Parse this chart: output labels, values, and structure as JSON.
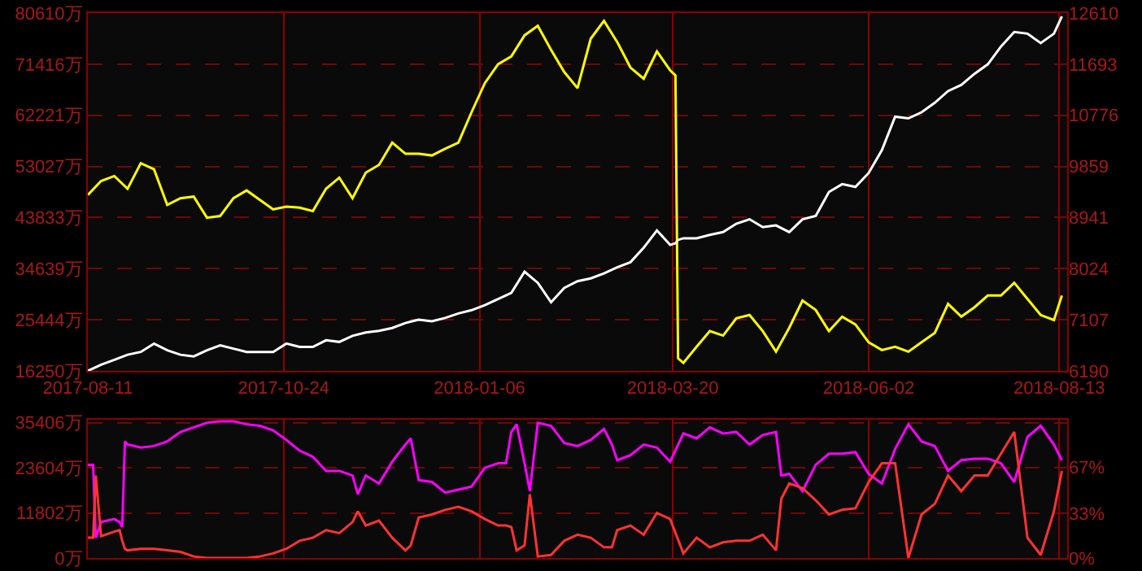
{
  "chart_data": [
    {
      "type": "line",
      "grid": true,
      "x": [
        "2017-08-11",
        "2017-08-16",
        "2017-08-21",
        "2017-08-26",
        "2017-08-31",
        "2017-09-05",
        "2017-09-10",
        "2017-09-15",
        "2017-09-20",
        "2017-09-25",
        "2017-09-30",
        "2017-10-05",
        "2017-10-10",
        "2017-10-15",
        "2017-10-20",
        "2017-10-25",
        "2017-10-30",
        "2017-11-04",
        "2017-11-09",
        "2017-11-14",
        "2017-11-19",
        "2017-11-24",
        "2017-11-29",
        "2017-12-04",
        "2017-12-09",
        "2017-12-14",
        "2017-12-19",
        "2017-12-24",
        "2017-12-29",
        "2018-01-03",
        "2018-01-08",
        "2018-01-13",
        "2018-01-18",
        "2018-01-23",
        "2018-01-28",
        "2018-02-02",
        "2018-02-07",
        "2018-02-12",
        "2018-02-17",
        "2018-02-22",
        "2018-02-27",
        "2018-03-04",
        "2018-03-09",
        "2018-03-14",
        "2018-03-19",
        "2018-03-21",
        "2018-03-22",
        "2018-03-24",
        "2018-03-29",
        "2018-04-03",
        "2018-04-08",
        "2018-04-13",
        "2018-04-18",
        "2018-04-23",
        "2018-04-28",
        "2018-05-03",
        "2018-05-08",
        "2018-05-13",
        "2018-05-18",
        "2018-05-23",
        "2018-05-28",
        "2018-06-02",
        "2018-06-07",
        "2018-06-12",
        "2018-06-17",
        "2018-06-22",
        "2018-06-27",
        "2018-07-02",
        "2018-07-07",
        "2018-07-12",
        "2018-07-17",
        "2018-07-22",
        "2018-07-27",
        "2018-08-01",
        "2018-08-06",
        "2018-08-11",
        "2018-08-14"
      ],
      "series": [
        {
          "color": "#ffff00",
          "values": [
            47900,
            50400,
            51300,
            49000,
            53600,
            52500,
            46100,
            47300,
            47600,
            43800,
            44100,
            47300,
            48700,
            47000,
            45300,
            45800,
            45600,
            45000,
            49000,
            51000,
            47300,
            51900,
            53300,
            57300,
            55300,
            55300,
            55000,
            56200,
            57300,
            62800,
            68000,
            71400,
            72800,
            76600,
            78300,
            74000,
            70000,
            67100,
            76000,
            79200,
            75400,
            70800,
            68800,
            73700,
            70300,
            69400,
            18500,
            17700,
            20600,
            23400,
            22600,
            25700,
            26300,
            23400,
            19700,
            24000,
            28900,
            27200,
            23400,
            26000,
            24600,
            21400,
            20000,
            20600,
            19700,
            21400,
            23100,
            28300,
            26000,
            27700,
            29800,
            29800,
            32100,
            29200,
            26300,
            25400,
            29800
          ]
        },
        {
          "color": "#ffffff",
          "axis": "y2",
          "values": [
            6190,
            6300,
            6390,
            6480,
            6530,
            6680,
            6560,
            6480,
            6450,
            6560,
            6650,
            6590,
            6530,
            6530,
            6530,
            6680,
            6620,
            6620,
            6740,
            6710,
            6820,
            6880,
            6910,
            6960,
            7050,
            7110,
            7080,
            7140,
            7220,
            7280,
            7370,
            7480,
            7590,
            7970,
            7770,
            7420,
            7680,
            7800,
            7850,
            7940,
            8050,
            8140,
            8400,
            8710,
            8450,
            8480,
            8540,
            8570,
            8570,
            8630,
            8680,
            8830,
            8910,
            8770,
            8800,
            8680,
            8910,
            8970,
            9400,
            9540,
            9490,
            9740,
            10150,
            10750,
            10720,
            10830,
            11000,
            11210,
            11320,
            11520,
            11690,
            12010,
            12270,
            12240,
            12070,
            12240,
            12550
          ]
        }
      ],
      "xlim": [
        "2017-08-11",
        "2018-08-16"
      ],
      "xticks": [
        "2017-08-11",
        "2017-10-24",
        "2018-01-06",
        "2018-03-20",
        "2018-06-02",
        "2018-08-13"
      ],
      "ylim": [
        16250,
        80610
      ],
      "yticks": [
        {
          "value": 16250,
          "label": "16250万"
        },
        {
          "value": 25444,
          "label": "25444万"
        },
        {
          "value": 34639,
          "label": "34639万"
        },
        {
          "value": 43833,
          "label": "43833万"
        },
        {
          "value": 53027,
          "label": "53027万"
        },
        {
          "value": 62221,
          "label": "62221万"
        },
        {
          "value": 71416,
          "label": "71416万"
        },
        {
          "value": 80610,
          "label": "80610万"
        }
      ],
      "y2lim": [
        6190,
        12610
      ],
      "y2ticks": [
        6190,
        7107,
        8024,
        8941,
        9859,
        10776,
        11693,
        12610
      ]
    },
    {
      "type": "line",
      "grid": true,
      "tick_labels": "y",
      "x": [
        "2017-08-11",
        "2017-08-13",
        "2017-08-14",
        "2017-08-16",
        "2017-08-21",
        "2017-08-23",
        "2017-08-24",
        "2017-08-25",
        "2017-08-26",
        "2017-08-31",
        "2017-09-05",
        "2017-09-10",
        "2017-09-15",
        "2017-09-20",
        "2017-09-25",
        "2017-09-30",
        "2017-10-05",
        "2017-10-10",
        "2017-10-15",
        "2017-10-20",
        "2017-10-25",
        "2017-10-30",
        "2017-11-04",
        "2017-11-09",
        "2017-11-14",
        "2017-11-19",
        "2017-11-21",
        "2017-11-24",
        "2017-11-29",
        "2017-12-04",
        "2017-12-09",
        "2017-12-11",
        "2017-12-14",
        "2017-12-19",
        "2017-12-24",
        "2017-12-29",
        "2018-01-03",
        "2018-01-08",
        "2018-01-13",
        "2018-01-16",
        "2018-01-18",
        "2018-01-20",
        "2018-01-23",
        "2018-01-25",
        "2018-01-28",
        "2018-02-02",
        "2018-02-07",
        "2018-02-12",
        "2018-02-17",
        "2018-02-22",
        "2018-02-25",
        "2018-02-27",
        "2018-03-04",
        "2018-03-09",
        "2018-03-14",
        "2018-03-19",
        "2018-03-24",
        "2018-03-29",
        "2018-04-03",
        "2018-04-08",
        "2018-04-13",
        "2018-04-18",
        "2018-04-23",
        "2018-04-28",
        "2018-04-30",
        "2018-05-03",
        "2018-05-08",
        "2018-05-13",
        "2018-05-18",
        "2018-05-23",
        "2018-05-28",
        "2018-06-02",
        "2018-06-07",
        "2018-06-12",
        "2018-06-17",
        "2018-06-22",
        "2018-06-27",
        "2018-07-02",
        "2018-07-07",
        "2018-07-12",
        "2018-07-17",
        "2018-07-22",
        "2018-07-27",
        "2018-08-01",
        "2018-08-06",
        "2018-08-11",
        "2018-08-14"
      ],
      "series": [
        {
          "color": "#ff00ff",
          "values": [
            24400,
            24400,
            5300,
            9400,
            10200,
            9400,
            8100,
            30500,
            29700,
            28900,
            29300,
            30500,
            33000,
            34200,
            35400,
            35800,
            35800,
            35000,
            34600,
            33400,
            30900,
            28100,
            26500,
            22800,
            22800,
            21600,
            16700,
            21600,
            19500,
            25200,
            29700,
            31300,
            20400,
            19900,
            17100,
            17900,
            18700,
            23600,
            24800,
            24800,
            33000,
            35000,
            24800,
            17500,
            35400,
            34600,
            30100,
            29300,
            30900,
            33800,
            29700,
            25600,
            26900,
            29700,
            28900,
            25200,
            32600,
            31300,
            34200,
            32600,
            33000,
            29700,
            32200,
            33000,
            21600,
            22000,
            17500,
            24400,
            27300,
            27300,
            27700,
            22000,
            19500,
            28500,
            35000,
            30500,
            29300,
            22800,
            25600,
            26000,
            26000,
            24800,
            19900,
            31700,
            34600,
            29700,
            25600
          ]
        },
        {
          "color": "#ff3333",
          "values": [
            5300,
            5300,
            21600,
            5700,
            6900,
            7300,
            4500,
            2400,
            2000,
            2400,
            2400,
            2000,
            1600,
            400,
            0,
            0,
            0,
            0,
            400,
            1200,
            2400,
            4500,
            5300,
            7300,
            6500,
            9400,
            12200,
            8500,
            9800,
            5300,
            2000,
            3300,
            10600,
            11400,
            12600,
            13400,
            12200,
            10200,
            8500,
            8500,
            8100,
            2000,
            3300,
            16700,
            400,
            800,
            4500,
            6100,
            5300,
            2800,
            2800,
            7300,
            8500,
            6100,
            11800,
            10200,
            1200,
            5300,
            2800,
            4100,
            4500,
            4500,
            6100,
            2000,
            15500,
            19500,
            18300,
            15100,
            11400,
            12600,
            13000,
            19900,
            24800,
            24800,
            0,
            11400,
            14200,
            21600,
            17500,
            21600,
            21600,
            27300,
            33000,
            5300,
            800,
            12200,
            22800
          ]
        }
      ],
      "xlim": [
        "2017-08-11",
        "2018-08-16"
      ],
      "xticks": [
        "2017-08-11",
        "2017-10-24",
        "2018-01-06",
        "2018-03-20",
        "2018-06-02",
        "2018-08-13"
      ],
      "ylim": [
        0,
        36200
      ],
      "yticks": [
        {
          "value": 0,
          "label": "0万"
        },
        {
          "value": 11802,
          "label": "11802万"
        },
        {
          "value": 23604,
          "label": "23604万"
        },
        {
          "value": 35406,
          "label": "35406万"
        }
      ],
      "y2lim": [
        0,
        102.2
      ],
      "y2ticks": [
        {
          "value": 0,
          "label": "0%"
        },
        {
          "value": 33,
          "label": "33%"
        },
        {
          "value": 67,
          "label": "67%"
        }
      ]
    }
  ]
}
